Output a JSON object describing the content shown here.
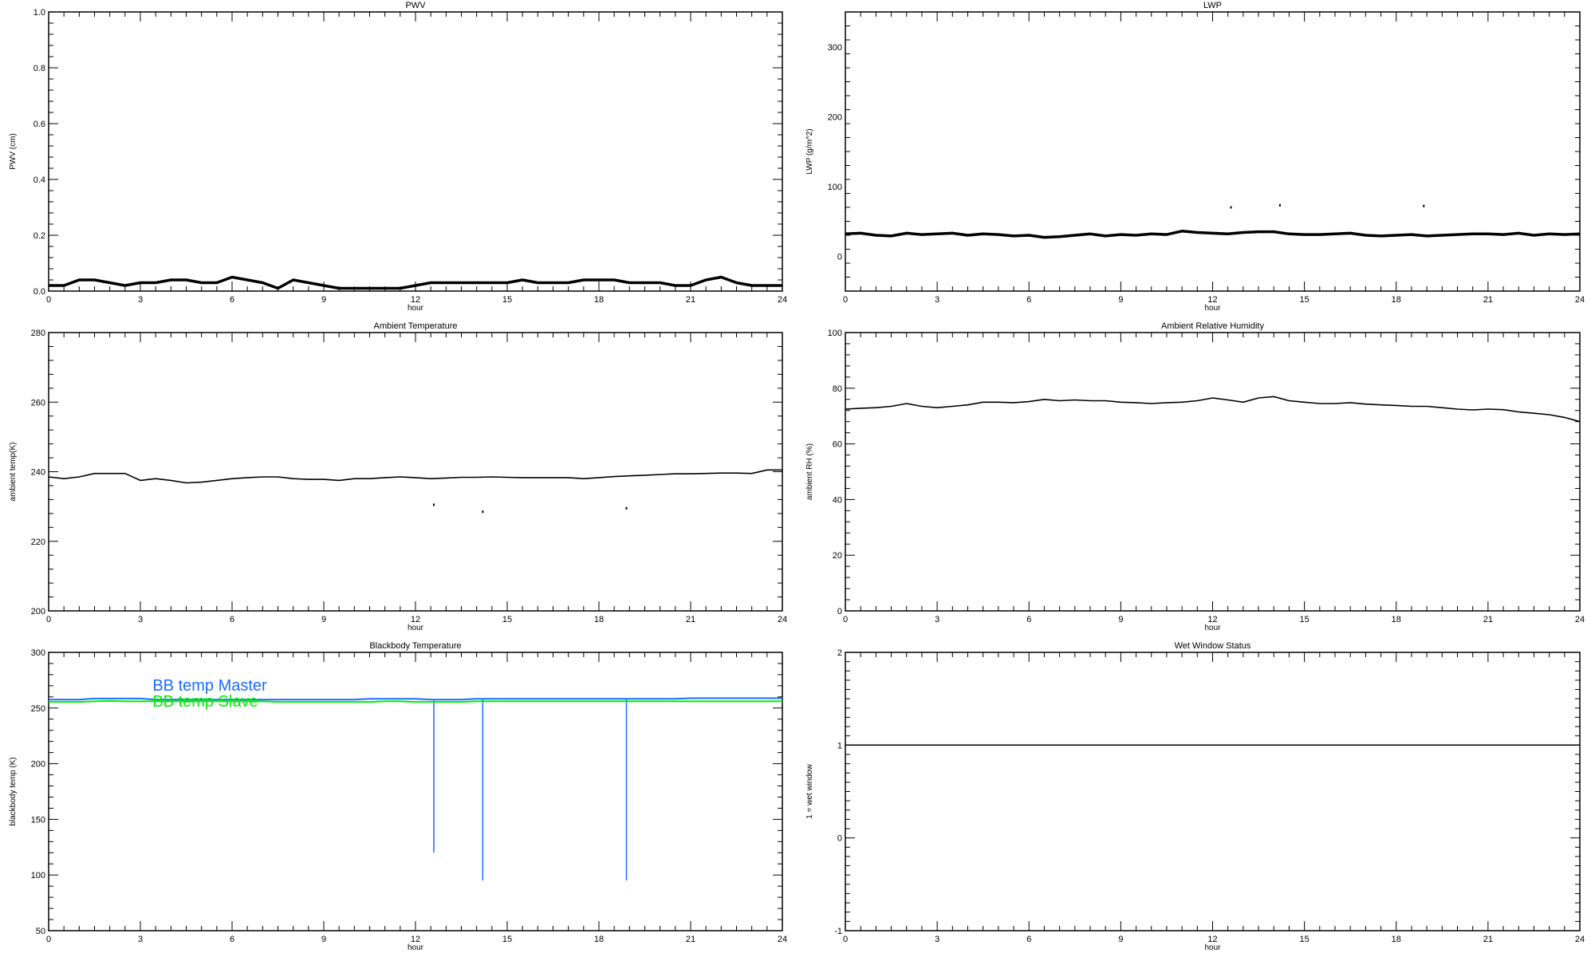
{
  "chart_data": [
    {
      "id": "pwv",
      "type": "line",
      "title": "PWV",
      "xlabel": "hour",
      "ylabel": "PWV (cm)",
      "xlim": [
        0,
        24
      ],
      "ylim": [
        0,
        1.0
      ],
      "xticks": [
        "0",
        "3",
        "6",
        "9",
        "12",
        "15",
        "18",
        "21",
        "24"
      ],
      "yticks": [
        "0.0",
        "0.2",
        "0.4",
        "0.6",
        "0.8",
        "1.0"
      ],
      "ytick_values": [
        0,
        0.2,
        0.4,
        0.6,
        0.8,
        1.0
      ],
      "yminor": 0.04,
      "series": [
        {
          "name": "PWV",
          "color": "#000000",
          "x_step": 0.5,
          "values": [
            0.02,
            0.02,
            0.04,
            0.04,
            0.03,
            0.02,
            0.03,
            0.03,
            0.04,
            0.04,
            0.03,
            0.03,
            0.05,
            0.04,
            0.03,
            0.01,
            0.04,
            0.03,
            0.02,
            0.01,
            0.01,
            0.01,
            0.01,
            0.01,
            0.02,
            0.03,
            0.03,
            0.03,
            0.03,
            0.03,
            0.03,
            0.04,
            0.03,
            0.03,
            0.03,
            0.04,
            0.04,
            0.04,
            0.03,
            0.03,
            0.03,
            0.02,
            0.02,
            0.04,
            0.05,
            0.03,
            0.02,
            0.02,
            0.02
          ]
        }
      ],
      "points": []
    },
    {
      "id": "lwp",
      "type": "line",
      "title": "LWP",
      "xlabel": "hour",
      "ylabel": "LWP (g/m^2)",
      "xlim": [
        0,
        24
      ],
      "ylim": [
        -50,
        350
      ],
      "xticks": [
        "0",
        "3",
        "6",
        "9",
        "12",
        "15",
        "18",
        "21",
        "24"
      ],
      "yticks": [
        "0",
        "100",
        "200",
        "300"
      ],
      "ytick_values": [
        0,
        100,
        200,
        300
      ],
      "yminor": 20,
      "series": [
        {
          "name": "LWP",
          "color": "#000000",
          "x_step": 0.5,
          "values": [
            32,
            33,
            30,
            29,
            33,
            31,
            32,
            33,
            30,
            32,
            31,
            29,
            30,
            27,
            28,
            30,
            32,
            29,
            31,
            30,
            32,
            31,
            36,
            34,
            33,
            32,
            34,
            35,
            35,
            32,
            31,
            31,
            32,
            33,
            30,
            29,
            30,
            31,
            29,
            30,
            31,
            32,
            32,
            31,
            33,
            30,
            32,
            31,
            32
          ]
        }
      ],
      "points": [
        {
          "x": 12.6,
          "y": 70
        },
        {
          "x": 14.2,
          "y": 73
        },
        {
          "x": 18.9,
          "y": 72
        }
      ]
    },
    {
      "id": "ambient-temp",
      "type": "line",
      "title": "Ambient Temperature",
      "xlabel": "hour",
      "ylabel": "ambient temp(K)",
      "xlim": [
        0,
        24
      ],
      "ylim": [
        200,
        280
      ],
      "xticks": [
        "0",
        "3",
        "6",
        "9",
        "12",
        "15",
        "18",
        "21",
        "24"
      ],
      "yticks": [
        "200",
        "220",
        "240",
        "260",
        "280"
      ],
      "ytick_values": [
        200,
        220,
        240,
        260,
        280
      ],
      "yminor": 4,
      "series": [
        {
          "name": "ambient temp",
          "color": "#000000",
          "x_step": 0.5,
          "values": [
            238.5,
            238,
            238.5,
            239.5,
            239.5,
            239.5,
            237.5,
            238,
            237.5,
            236.8,
            237,
            237.5,
            238,
            238.3,
            238.5,
            238.5,
            238,
            237.8,
            237.8,
            237.5,
            238,
            238,
            238.3,
            238.5,
            238.3,
            238,
            238.2,
            238.4,
            238.4,
            238.5,
            238.4,
            238.3,
            238.3,
            238.3,
            238.3,
            238,
            238.3,
            238.6,
            238.8,
            239,
            239.2,
            239.4,
            239.4,
            239.5,
            239.6,
            239.6,
            239.5,
            240.5,
            240.5
          ]
        }
      ],
      "points": [
        {
          "x": 12.6,
          "y": 230.5
        },
        {
          "x": 14.2,
          "y": 228.5
        },
        {
          "x": 18.9,
          "y": 229.5
        }
      ]
    },
    {
      "id": "ambient-rh",
      "type": "line",
      "title": "Ambient Relative Humidity",
      "xlabel": "hour",
      "ylabel": "ambient RH (%)",
      "xlim": [
        0,
        24
      ],
      "ylim": [
        0,
        100
      ],
      "xticks": [
        "0",
        "3",
        "6",
        "9",
        "12",
        "15",
        "18",
        "21",
        "24"
      ],
      "yticks": [
        "0",
        "20",
        "40",
        "60",
        "80",
        "100"
      ],
      "ytick_values": [
        0,
        20,
        40,
        60,
        80,
        100
      ],
      "yminor": 4,
      "series": [
        {
          "name": "ambient RH",
          "color": "#000000",
          "x_step": 0.5,
          "values": [
            72.5,
            72.8,
            73,
            73.5,
            74.5,
            73.5,
            73,
            73.5,
            74,
            75,
            75,
            74.8,
            75.2,
            76,
            75.5,
            75.8,
            75.5,
            75.5,
            75,
            74.8,
            74.5,
            74.8,
            75,
            75.5,
            76.5,
            75.8,
            75,
            76.5,
            77,
            75.5,
            75,
            74.5,
            74.5,
            74.8,
            74.3,
            74,
            73.8,
            73.5,
            73.5,
            73,
            72.5,
            72.2,
            72.5,
            72.3,
            71.5,
            71,
            70.5,
            69.5,
            68
          ]
        }
      ],
      "points": []
    },
    {
      "id": "blackbody-temp",
      "type": "line",
      "title": "Blackbody Temperature",
      "xlabel": "hour",
      "ylabel": "blackbody temp (K)",
      "xlim": [
        0,
        24
      ],
      "ylim": [
        50,
        300
      ],
      "xticks": [
        "0",
        "3",
        "6",
        "9",
        "12",
        "15",
        "18",
        "21",
        "24"
      ],
      "yticks": [
        "50",
        "100",
        "150",
        "200",
        "250",
        "300"
      ],
      "ytick_values": [
        50,
        100,
        150,
        200,
        250,
        300
      ],
      "yminor": 10,
      "legend": [
        "BB temp Master",
        "BB temp Slave"
      ],
      "series": [
        {
          "name": "BB temp Master",
          "color": "#1a6cff",
          "x_step": 0.5,
          "values": [
            257.5,
            257.5,
            257.5,
            258.5,
            258.5,
            258.5,
            258.5,
            257.5,
            257.5,
            257.5,
            257.5,
            257.5,
            257.5,
            257.5,
            257.5,
            257.5,
            257.5,
            257.5,
            257.5,
            257.5,
            257.5,
            258.3,
            258.3,
            258.3,
            258.3,
            257.5,
            257.5,
            257.5,
            258.3,
            258.3,
            258.3,
            258.3,
            258.3,
            258.3,
            258.3,
            258.3,
            258.3,
            258.3,
            258.3,
            258.3,
            258.3,
            258.3,
            258.8,
            258.8,
            258.8,
            258.8,
            258.8,
            258.8,
            258.8
          ],
          "spikes": [
            {
              "x": 12.6,
              "min": 120
            },
            {
              "x": 14.2,
              "min": 95
            },
            {
              "x": 18.9,
              "min": 95
            }
          ]
        },
        {
          "name": "BB temp Slave",
          "color": "#00ee00",
          "x_step": 0.5,
          "values": [
            255.5,
            255.5,
            255.5,
            256,
            256.5,
            256,
            256,
            256,
            256,
            256,
            256,
            256,
            256,
            256,
            256,
            255.5,
            255.5,
            255.5,
            255.5,
            255.5,
            255.5,
            255.5,
            256,
            256,
            255.5,
            255.5,
            255.5,
            255.5,
            256,
            256,
            256,
            256,
            256,
            256,
            256,
            256,
            256,
            256,
            256,
            256,
            256,
            256,
            256,
            256,
            256,
            256,
            256,
            256,
            256
          ]
        }
      ],
      "points": []
    },
    {
      "id": "wet-window",
      "type": "line",
      "title": "Wet Window Status",
      "xlabel": "hour",
      "ylabel": "1 = wet window",
      "xlim": [
        0,
        24
      ],
      "ylim": [
        -1,
        2
      ],
      "xticks": [
        "0",
        "3",
        "6",
        "9",
        "12",
        "15",
        "18",
        "21",
        "24"
      ],
      "yticks": [
        "-1",
        "0",
        "1",
        "2"
      ],
      "ytick_values": [
        -1,
        0,
        1,
        2
      ],
      "yminor": 0.1,
      "series": [
        {
          "name": "wet window",
          "color": "#000000",
          "x_step": 24,
          "values": [
            1,
            1
          ]
        }
      ],
      "points": []
    }
  ]
}
